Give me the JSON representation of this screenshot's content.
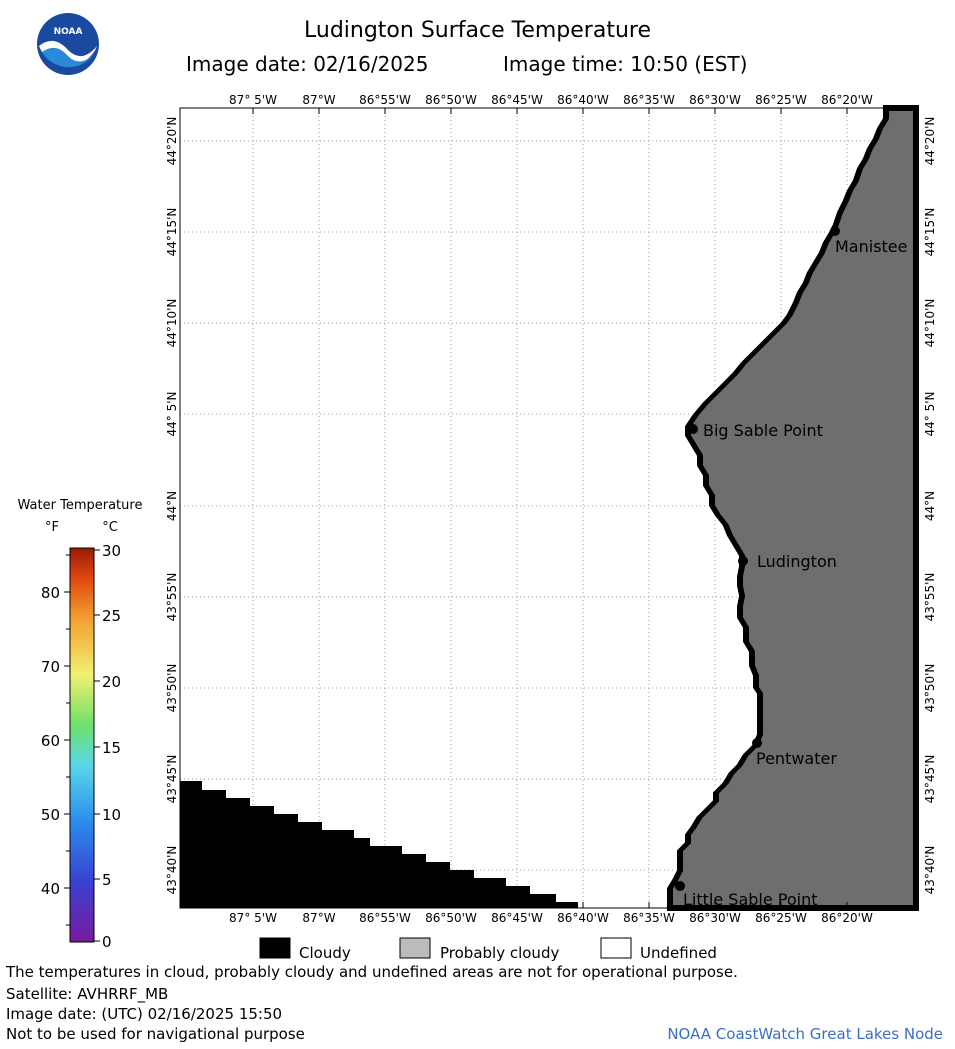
{
  "header": {
    "title": "Ludington Surface Temperature",
    "image_date": "Image date: 02/16/2025",
    "image_time": "Image time: 10:50 (EST)"
  },
  "logo": {
    "text": "NOAA"
  },
  "map": {
    "lon_labels": [
      "87° 5'W",
      "87°W",
      "86°55'W",
      "86°50'W",
      "86°45'W",
      "86°40'W",
      "86°35'W",
      "86°30'W",
      "86°25'W",
      "86°20'W"
    ],
    "lat_labels": [
      "44°20'N",
      "44°15'N",
      "44°10'N",
      "44° 5'N",
      "44°N",
      "43°55'N",
      "43°50'N",
      "43°45'N",
      "43°40'N"
    ],
    "places": [
      {
        "name": "Manistee"
      },
      {
        "name": "Big Sable Point"
      },
      {
        "name": "Ludington"
      },
      {
        "name": "Pentwater"
      },
      {
        "name": "Little Sable Point"
      }
    ],
    "colors": {
      "land": "#6e6e6e",
      "cloudy": "#000000",
      "water": "#ffffff"
    }
  },
  "colorbar": {
    "title": "Water Temperature",
    "unit_f": "°F",
    "unit_c": "°C",
    "f_ticks": [
      "80",
      "70",
      "60",
      "50",
      "40"
    ],
    "c_ticks": [
      "30",
      "25",
      "20",
      "15",
      "10",
      "5",
      "0"
    ]
  },
  "legend": {
    "cloudy": "Cloudy",
    "probably_cloudy": "Probably cloudy",
    "undefined": "Undefined"
  },
  "footer": {
    "disclaimer": "The temperatures in cloud, probably cloudy and undefined areas are not for operational purpose.",
    "satellite": "Satellite: AVHRRF_MB",
    "utc_date": "Image date: (UTC) 02/16/2025  15:50",
    "nav_warning": "Not to be used for navigational purpose",
    "credit": "NOAA CoastWatch Great Lakes Node"
  }
}
